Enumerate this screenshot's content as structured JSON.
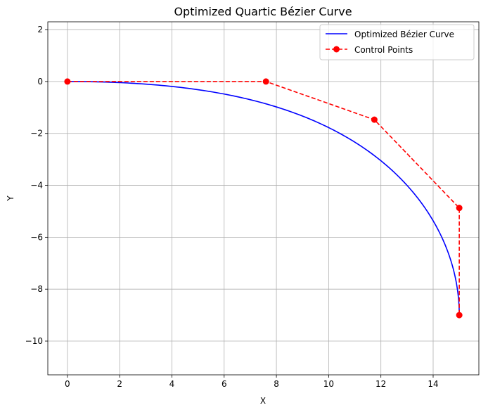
{
  "chart_data": {
    "type": "line",
    "title": "Optimized Quartic Bézier Curve",
    "xlabel": "X",
    "ylabel": "Y",
    "xlim": [
      -0.75,
      15.75
    ],
    "ylim": [
      -11.3,
      2.3
    ],
    "x_ticks": [
      0,
      2,
      4,
      6,
      8,
      10,
      12,
      14
    ],
    "y_ticks": [
      2,
      0,
      -2,
      -4,
      -6,
      -8,
      -10
    ],
    "x_tick_labels": [
      "0",
      "2",
      "4",
      "6",
      "8",
      "10",
      "12",
      "14"
    ],
    "y_tick_labels": [
      "2",
      "0",
      "−2",
      "−4",
      "−6",
      "−8",
      "−10"
    ],
    "grid": true,
    "legend_position": "top-right",
    "series": [
      {
        "name": "Optimized Bézier Curve",
        "style": "solid",
        "color": "#0000ff",
        "curve_type": "quartic-bezier",
        "control_points": [
          [
            0,
            0
          ],
          [
            7.6,
            0
          ],
          [
            11.75,
            -1.47
          ],
          [
            15.0,
            -4.87
          ],
          [
            15.0,
            -9.0
          ]
        ]
      },
      {
        "name": "Control Points",
        "style": "dashed",
        "marker": "circle",
        "color": "#ff0000",
        "x": [
          0,
          7.6,
          11.75,
          15.0,
          15.0
        ],
        "y": [
          0,
          0,
          -1.47,
          -4.87,
          -9.0
        ]
      }
    ]
  }
}
